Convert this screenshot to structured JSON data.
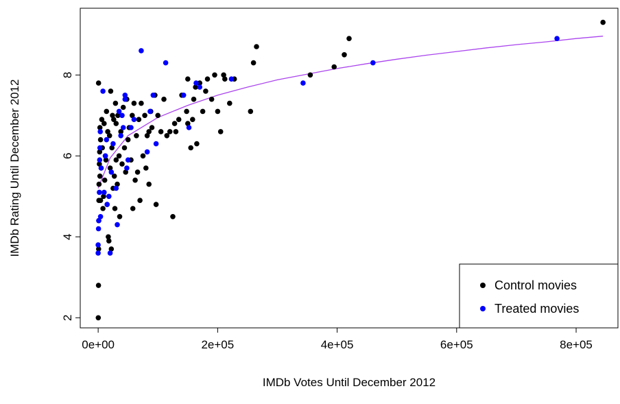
{
  "chart_data": {
    "type": "scatter",
    "title": "",
    "xlabel": "IMDb Votes Until December 2012",
    "ylabel": "IMDb Rating Until December 2012",
    "xlim": [
      -30000,
      870000
    ],
    "ylim": [
      1.75,
      9.65
    ],
    "x_ticks": [
      0,
      200000,
      400000,
      600000,
      800000
    ],
    "x_tick_labels": [
      "0e+00",
      "2e+05",
      "4e+05",
      "6e+05",
      "8e+05"
    ],
    "y_ticks": [
      2,
      4,
      6,
      8
    ],
    "y_tick_labels": [
      "2",
      "4",
      "6",
      "8"
    ],
    "grid": false,
    "legend_position": "bottom-right",
    "series": [
      {
        "name": "Control movies",
        "color": "#000000",
        "points": [
          [
            200,
            2.0
          ],
          [
            500,
            2.8
          ],
          [
            800,
            3.7
          ],
          [
            1000,
            4.4
          ],
          [
            1200,
            4.9
          ],
          [
            1500,
            5.3
          ],
          [
            2000,
            5.8
          ],
          [
            2500,
            6.1
          ],
          [
            3000,
            6.7
          ],
          [
            600,
            7.8
          ],
          [
            3000,
            5.5
          ],
          [
            4000,
            4.9
          ],
          [
            4000,
            6.4
          ],
          [
            5000,
            5.7
          ],
          [
            6000,
            6.9
          ],
          [
            7000,
            6.2
          ],
          [
            8000,
            4.7
          ],
          [
            9000,
            5.0
          ],
          [
            10000,
            6.8
          ],
          [
            11000,
            5.4
          ],
          [
            12000,
            6.0
          ],
          [
            13000,
            5.9
          ],
          [
            14000,
            7.1
          ],
          [
            15000,
            4.8
          ],
          [
            16000,
            6.6
          ],
          [
            17000,
            4.0
          ],
          [
            18000,
            3.9
          ],
          [
            19000,
            6.5
          ],
          [
            20000,
            5.7
          ],
          [
            21000,
            7.6
          ],
          [
            22000,
            3.7
          ],
          [
            23000,
            6.2
          ],
          [
            24000,
            7.0
          ],
          [
            25000,
            5.2
          ],
          [
            26000,
            6.9
          ],
          [
            27000,
            5.5
          ],
          [
            28000,
            4.7
          ],
          [
            29000,
            7.3
          ],
          [
            30000,
            6.8
          ],
          [
            32000,
            5.3
          ],
          [
            33000,
            7.0
          ],
          [
            35000,
            6.0
          ],
          [
            36000,
            4.5
          ],
          [
            38000,
            6.6
          ],
          [
            40000,
            5.8
          ],
          [
            42000,
            7.2
          ],
          [
            44000,
            6.2
          ],
          [
            46000,
            5.6
          ],
          [
            48000,
            7.4
          ],
          [
            50000,
            6.4
          ],
          [
            52000,
            6.7
          ],
          [
            55000,
            5.9
          ],
          [
            57000,
            7.0
          ],
          [
            58000,
            4.7
          ],
          [
            60000,
            7.3
          ],
          [
            62000,
            5.4
          ],
          [
            64000,
            6.5
          ],
          [
            66000,
            5.6
          ],
          [
            68000,
            6.9
          ],
          [
            70000,
            4.9
          ],
          [
            72000,
            7.3
          ],
          [
            75000,
            6.0
          ],
          [
            78000,
            7.0
          ],
          [
            80000,
            5.7
          ],
          [
            82000,
            6.5
          ],
          [
            85000,
            5.3
          ],
          [
            88000,
            7.1
          ],
          [
            90000,
            6.7
          ],
          [
            95000,
            7.5
          ],
          [
            97000,
            4.8
          ],
          [
            100000,
            7.0
          ],
          [
            105000,
            6.6
          ],
          [
            110000,
            7.4
          ],
          [
            115000,
            6.5
          ],
          [
            120000,
            6.6
          ],
          [
            125000,
            4.5
          ],
          [
            128000,
            6.8
          ],
          [
            130000,
            6.6
          ],
          [
            135000,
            6.9
          ],
          [
            140000,
            7.5
          ],
          [
            148000,
            7.1
          ],
          [
            150000,
            6.8
          ],
          [
            155000,
            6.2
          ],
          [
            160000,
            7.4
          ],
          [
            163000,
            7.7
          ],
          [
            165000,
            6.3
          ],
          [
            170000,
            7.8
          ],
          [
            175000,
            7.1
          ],
          [
            180000,
            7.6
          ],
          [
            183000,
            7.9
          ],
          [
            190000,
            7.4
          ],
          [
            195000,
            8.0
          ],
          [
            200000,
            7.1
          ],
          [
            205000,
            6.6
          ],
          [
            210000,
            8.0
          ],
          [
            212000,
            7.9
          ],
          [
            220000,
            7.3
          ],
          [
            228000,
            7.9
          ],
          [
            255000,
            7.1
          ],
          [
            260000,
            8.3
          ],
          [
            265000,
            8.7
          ],
          [
            355000,
            8.0
          ],
          [
            395000,
            8.2
          ],
          [
            412000,
            8.5
          ],
          [
            420000,
            8.9
          ],
          [
            845000,
            9.3
          ],
          [
            150000,
            7.9
          ],
          [
            158000,
            6.9
          ],
          [
            85000,
            6.6
          ],
          [
            30000,
            5.9
          ]
        ]
      },
      {
        "name": "Treated movies",
        "color": "#0000ff",
        "points": [
          [
            0,
            3.6
          ],
          [
            0,
            3.8
          ],
          [
            500,
            4.2
          ],
          [
            1000,
            4.4
          ],
          [
            2000,
            5.1
          ],
          [
            2500,
            5.9
          ],
          [
            3000,
            6.2
          ],
          [
            3500,
            6.6
          ],
          [
            4000,
            4.5
          ],
          [
            5000,
            5.7
          ],
          [
            8000,
            7.6
          ],
          [
            10000,
            5.1
          ],
          [
            12000,
            6.0
          ],
          [
            14000,
            6.4
          ],
          [
            15000,
            4.8
          ],
          [
            18000,
            5.0
          ],
          [
            20000,
            3.6
          ],
          [
            22000,
            5.6
          ],
          [
            25000,
            6.3
          ],
          [
            30000,
            5.2
          ],
          [
            32000,
            4.3
          ],
          [
            35000,
            7.1
          ],
          [
            38000,
            6.5
          ],
          [
            40000,
            7.0
          ],
          [
            42000,
            6.7
          ],
          [
            45000,
            7.5
          ],
          [
            48000,
            5.7
          ],
          [
            50000,
            5.9
          ],
          [
            55000,
            6.7
          ],
          [
            60000,
            6.9
          ],
          [
            72000,
            8.6
          ],
          [
            82000,
            6.1
          ],
          [
            87000,
            7.1
          ],
          [
            92000,
            7.5
          ],
          [
            97000,
            6.3
          ],
          [
            113000,
            8.3
          ],
          [
            143000,
            7.5
          ],
          [
            152000,
            6.7
          ],
          [
            164000,
            7.8
          ],
          [
            170000,
            7.7
          ],
          [
            223000,
            7.9
          ],
          [
            343000,
            7.8
          ],
          [
            460000,
            8.3
          ],
          [
            768000,
            8.9
          ],
          [
            45000,
            7.4
          ]
        ]
      }
    ],
    "fit_line": {
      "color": "#aa44ee",
      "points": [
        [
          0,
          5.2
        ],
        [
          20000,
          5.95
        ],
        [
          50000,
          6.5
        ],
        [
          100000,
          6.95
        ],
        [
          150000,
          7.25
        ],
        [
          200000,
          7.5
        ],
        [
          250000,
          7.7
        ],
        [
          300000,
          7.88
        ],
        [
          350000,
          8.02
        ],
        [
          400000,
          8.16
        ],
        [
          450000,
          8.28
        ],
        [
          500000,
          8.39
        ],
        [
          550000,
          8.49
        ],
        [
          600000,
          8.58
        ],
        [
          650000,
          8.67
        ],
        [
          700000,
          8.75
        ],
        [
          750000,
          8.82
        ],
        [
          800000,
          8.9
        ],
        [
          845000,
          8.96
        ]
      ]
    }
  }
}
